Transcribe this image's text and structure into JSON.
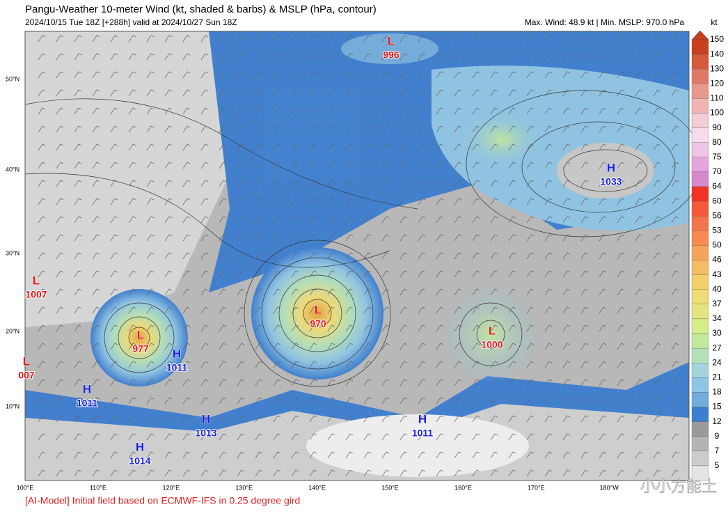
{
  "header": {
    "title": "Pangu-Weather 10-meter Wind (kt, shaded & barbs) & MSLP (hPa, contour)",
    "subtitle": "2024/10/15 Tue 18Z [+288h] valid at 2024/10/27 Sun 18Z",
    "stats": "Max. Wind: 48.9 kt | Min. MSLP: 970.0 hPa"
  },
  "colorbar": {
    "unit": "kt",
    "labels": [
      "150",
      "140",
      "130",
      "120",
      "110",
      "100",
      "90",
      "80",
      "75",
      "70",
      "64",
      "60",
      "56",
      "53",
      "50",
      "46",
      "43",
      "40",
      "37",
      "34",
      "30",
      "27",
      "24",
      "21",
      "18",
      "15",
      "12",
      "9",
      "7",
      "5"
    ],
    "colors": [
      "#c8401c",
      "#d45a3c",
      "#e07a68",
      "#e8998e",
      "#f0b6b4",
      "#f4ccd4",
      "#f6dcea",
      "#eec4e4",
      "#e4a4dc",
      "#d888cc",
      "#f03428",
      "#f45a3a",
      "#f6744a",
      "#f68c52",
      "#f6a45a",
      "#f6bc64",
      "#f4d06c",
      "#eedc76",
      "#e6e47e",
      "#d8ec8a",
      "#c4e89a",
      "#b4e0b8",
      "#a6d4de",
      "#8ec4e4",
      "#72acdc",
      "#3c7ed0",
      "#9a9a9a",
      "#b4b4b4",
      "#cccccc",
      "#e4e4e4"
    ]
  },
  "axes": {
    "lat": [
      "50°N",
      "40°N",
      "30°N",
      "20°N",
      "10°N"
    ],
    "lon": [
      "100°E",
      "110°E",
      "120°E",
      "130°E",
      "140°E",
      "150°E",
      "160°E",
      "170°E",
      "180°W"
    ]
  },
  "systems": [
    {
      "type": "L",
      "value": "996"
    },
    {
      "type": "L",
      "value": "1007"
    },
    {
      "type": "L",
      "value": "977"
    },
    {
      "type": "H",
      "value": "1011"
    },
    {
      "type": "H",
      "value": "1011"
    },
    {
      "type": "L",
      "value": "970"
    },
    {
      "type": "L",
      "value": "1000"
    },
    {
      "type": "H",
      "value": "1033"
    },
    {
      "type": "H",
      "value": "1011"
    },
    {
      "type": "H",
      "value": "1013"
    },
    {
      "type": "H",
      "value": "1014"
    },
    {
      "type": "L",
      "value": "007"
    }
  ],
  "footer": "[AI-Model] Initial field based on ECMWF-IFS in 0.25 degree gird",
  "watermark": "小小方能土"
}
